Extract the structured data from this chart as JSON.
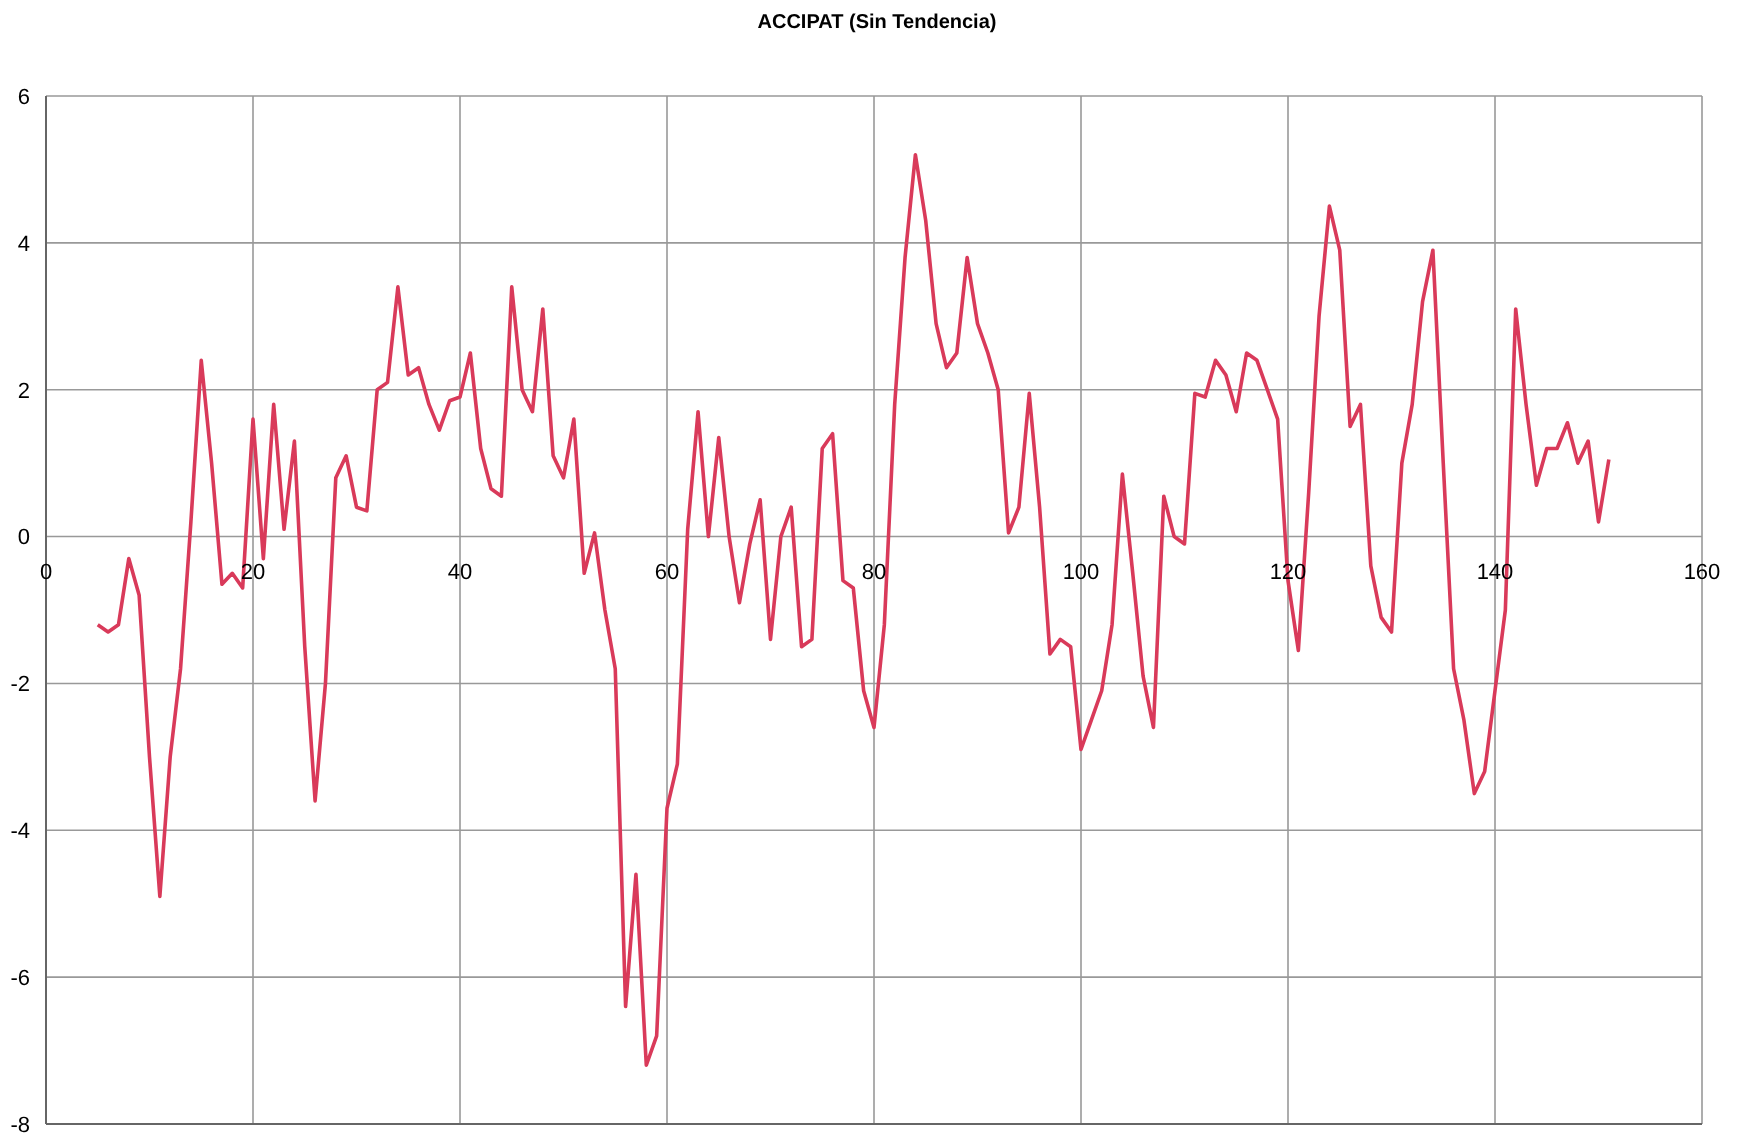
{
  "chart_data": {
    "type": "line",
    "title": "ACCIPAT (Sin Tendencia)",
    "x": [
      5,
      6,
      7,
      8,
      9,
      10,
      11,
      12,
      13,
      14,
      15,
      16,
      17,
      18,
      19,
      20,
      21,
      22,
      23,
      24,
      25,
      26,
      27,
      28,
      29,
      30,
      31,
      32,
      33,
      34,
      35,
      36,
      37,
      38,
      39,
      40,
      41,
      42,
      43,
      44,
      45,
      46,
      47,
      48,
      49,
      50,
      51,
      52,
      53,
      54,
      55,
      56,
      57,
      58,
      59,
      60,
      61,
      62,
      63,
      64,
      65,
      66,
      67,
      68,
      69,
      70,
      71,
      72,
      73,
      74,
      75,
      76,
      77,
      78,
      79,
      80,
      81,
      82,
      83,
      84,
      85,
      86,
      87,
      88,
      89,
      90,
      91,
      92,
      93,
      94,
      95,
      96,
      97,
      98,
      99,
      100,
      101,
      102,
      103,
      104,
      105,
      106,
      107,
      108,
      109,
      110,
      111,
      112,
      113,
      114,
      115,
      116,
      117,
      118,
      119,
      120,
      121,
      122,
      123,
      124,
      125,
      126,
      127,
      128,
      129,
      130,
      131,
      132,
      133,
      134,
      135,
      136,
      137,
      138,
      139,
      140,
      141,
      142,
      143,
      144,
      145,
      146,
      147,
      148,
      149,
      150,
      151
    ],
    "series": [
      {
        "color": "#d93a5a",
        "values": [
          -1.2,
          -1.3,
          -1.2,
          -0.3,
          -0.8,
          -3,
          -4.9,
          -3,
          -1.8,
          0.2,
          2.4,
          1,
          -0.65,
          -0.5,
          -0.7,
          1.6,
          -0.3,
          1.8,
          0.1,
          1.3,
          -1.5,
          -3.6,
          -2,
          0.8,
          1.1,
          0.4,
          0.35,
          2,
          2.1,
          3.4,
          2.2,
          2.3,
          1.8,
          1.45,
          1.85,
          1.9,
          2.5,
          1.2,
          0.65,
          0.55,
          3.4,
          2,
          1.7,
          3.1,
          1.1,
          0.8,
          1.6,
          -0.5,
          0.05,
          -1,
          -1.8,
          -6.4,
          -4.6,
          -7.2,
          -6.8,
          -3.7,
          -3.1,
          0.1,
          1.7,
          0,
          1.35,
          0,
          -0.9,
          -0.1,
          0.5,
          -1.4,
          0,
          0.4,
          -1.5,
          -1.4,
          1.2,
          1.4,
          -0.6,
          -0.7,
          -2.1,
          -2.6,
          -1.2,
          1.8,
          3.8,
          5.2,
          4.3,
          2.9,
          2.3,
          2.5,
          3.8,
          2.9,
          2.5,
          2,
          0.05,
          0.4,
          1.95,
          0.4,
          -1.6,
          -1.4,
          -1.5,
          -2.9,
          -2.5,
          -2.1,
          -1.2,
          0.85,
          -0.5,
          -1.9,
          -2.6,
          0.55,
          0,
          -0.1,
          1.95,
          1.9,
          2.4,
          2.2,
          1.7,
          2.5,
          2.4,
          2,
          1.6,
          -0.6,
          -1.55,
          0.6,
          3,
          4.5,
          3.9,
          1.5,
          1.8,
          -0.4,
          -1.1,
          -1.3,
          1,
          1.8,
          3.2,
          3.9,
          1,
          -1.8,
          -2.5,
          -3.5,
          -3.2,
          -2.1,
          -1,
          3.1,
          1.8,
          0.7,
          1.2,
          1.2,
          1.55,
          1,
          1.3,
          0.2,
          1.05
        ]
      }
    ],
    "xlim": [
      0,
      160
    ],
    "xticks": [
      0,
      20,
      40,
      60,
      80,
      100,
      120,
      140,
      160
    ],
    "ylim": [
      -8,
      6
    ],
    "yticks": [
      -8,
      -6,
      -4,
      -2,
      0,
      2,
      4,
      6
    ],
    "grid": true,
    "marker": "none",
    "line_style": "solid",
    "legend": false
  }
}
